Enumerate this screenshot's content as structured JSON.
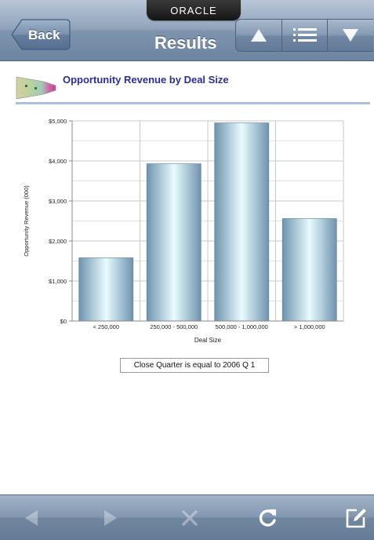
{
  "navbar": {
    "brand": "ORACLE",
    "back_label": "Back",
    "title": "Results",
    "segments": [
      {
        "icon": "triangle-up-icon"
      },
      {
        "icon": "list-icon"
      },
      {
        "icon": "triangle-down-icon"
      }
    ]
  },
  "report": {
    "title": "Opportunity Revenue by Deal Size",
    "icon": "funnel-chart-icon"
  },
  "chart_data": {
    "type": "bar",
    "categories": [
      "< 250,000",
      "250,000 - 500,000",
      "500,000 - 1,000,000",
      "> 1,000,000"
    ],
    "values": [
      1580,
      3930,
      4950,
      2560
    ],
    "xlabel": "Deal Size",
    "ylabel": "Opportunity Revenue (000)",
    "ylim": [
      0,
      5000
    ],
    "yticks": [
      0,
      1000,
      2000,
      3000,
      4000,
      5000
    ],
    "ytick_labels": [
      "$0",
      "$1,000",
      "$2,000",
      "$3,000",
      "$4,000",
      "$5,000"
    ],
    "grid": true
  },
  "filter": {
    "text": "Close Quarter is equal to 2006 Q 1"
  },
  "toolbar": {
    "items": [
      {
        "icon": "back-arrow-icon",
        "enabled": false
      },
      {
        "icon": "forward-arrow-icon",
        "enabled": false
      },
      {
        "icon": "stop-icon",
        "enabled": false
      },
      {
        "icon": "refresh-icon",
        "enabled": true
      },
      {
        "icon": "compose-icon",
        "enabled": true
      }
    ]
  },
  "colors": {
    "title_color": "#2c2c9c",
    "bar_dark": "#6f93ad",
    "bar_light": "#e8fbff",
    "header_rule": "#a9bfda"
  }
}
